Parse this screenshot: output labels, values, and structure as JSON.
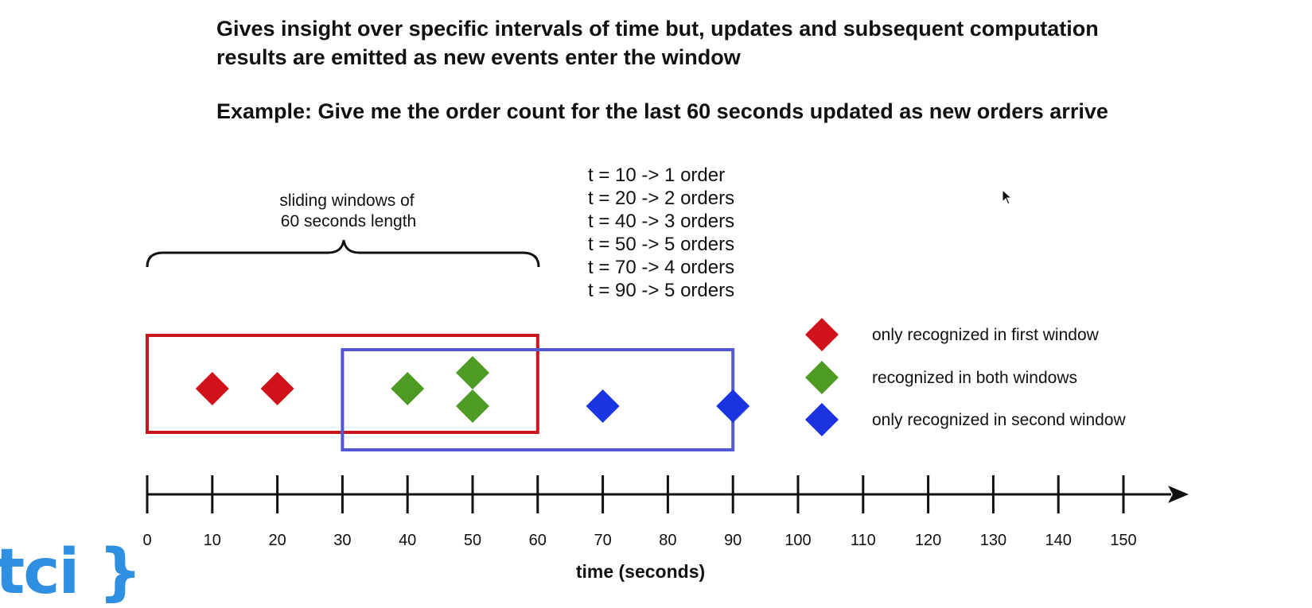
{
  "heading_1": "Gives insight over specific intervals of time but, updates and subsequent computation results are emitted as new events enter the window",
  "heading_2": "Example: Give me the order count for the last 60 seconds updated as new orders arrive",
  "brace_label_line1": "sliding windows of",
  "brace_label_line2": "60 seconds length",
  "counts": [
    "t = 10 -> 1 order",
    "t = 20 -> 2 orders",
    "t = 40 -> 3 orders",
    "t = 50 -> 5 orders",
    "t = 70 -> 4 orders",
    "t = 90 -> 5 orders"
  ],
  "axis": {
    "label": "time (seconds)",
    "ticks": [
      "0",
      "10",
      "20",
      "30",
      "40",
      "50",
      "60",
      "70",
      "80",
      "90",
      "100",
      "110",
      "120",
      "130",
      "140",
      "150"
    ],
    "min": 0,
    "max": 150
  },
  "windows": [
    {
      "name": "first window",
      "start": 0,
      "end": 60,
      "color": "#c8161d"
    },
    {
      "name": "second window",
      "start": 30,
      "end": 90,
      "color": "#5558d6"
    }
  ],
  "events": [
    {
      "t": 10,
      "level": "low",
      "group": "first"
    },
    {
      "t": 20,
      "level": "low",
      "group": "first"
    },
    {
      "t": 40,
      "level": "low",
      "group": "both"
    },
    {
      "t": 50,
      "level": "high",
      "group": "both"
    },
    {
      "t": 50,
      "level": "bottom",
      "group": "both"
    },
    {
      "t": 70,
      "level": "bottom",
      "group": "second"
    },
    {
      "t": 90,
      "level": "bottom",
      "group": "second"
    }
  ],
  "legend": [
    {
      "key": "first",
      "label": "only recognized in first window",
      "color": "#d0121a"
    },
    {
      "key": "both",
      "label": "recognized in both windows",
      "color": "#4d9b22"
    },
    {
      "key": "second",
      "label": "only recognized in second window",
      "color": "#1934e0"
    }
  ],
  "logo_text": "tci }"
}
